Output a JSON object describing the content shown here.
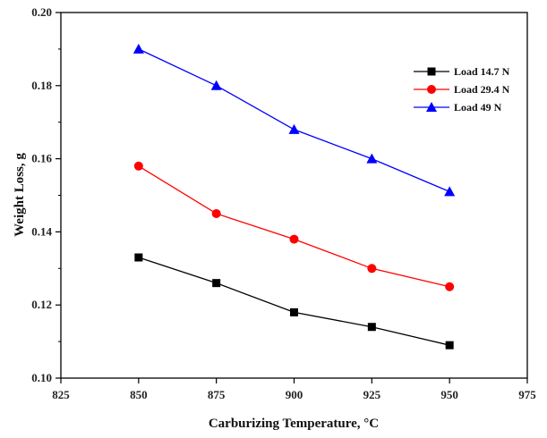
{
  "chart_data": {
    "type": "line",
    "xlabel": "Carburizing Temperature, °C",
    "ylabel": "Weight Loss, g",
    "xlim": [
      825,
      975
    ],
    "ylim": [
      0.1,
      0.2
    ],
    "x_ticks": [
      825,
      850,
      875,
      900,
      925,
      950,
      975
    ],
    "y_ticks": [
      "0.10",
      "0.12",
      "0.14",
      "0.16",
      "0.18",
      "0.20"
    ],
    "grid": false,
    "legend_position": "top-right",
    "x": [
      850,
      875,
      900,
      925,
      950
    ],
    "series": [
      {
        "name": "Load 14.7 N",
        "color": "#000000",
        "marker": "square",
        "values": [
          0.133,
          0.126,
          0.118,
          0.114,
          0.109
        ]
      },
      {
        "name": "Load 29.4 N",
        "color": "#ff0000",
        "marker": "circle",
        "values": [
          0.158,
          0.145,
          0.138,
          0.13,
          0.125
        ]
      },
      {
        "name": "Load 49 N",
        "color": "#0000ff",
        "marker": "triangle",
        "values": [
          0.19,
          0.18,
          0.168,
          0.16,
          0.151
        ]
      }
    ]
  }
}
